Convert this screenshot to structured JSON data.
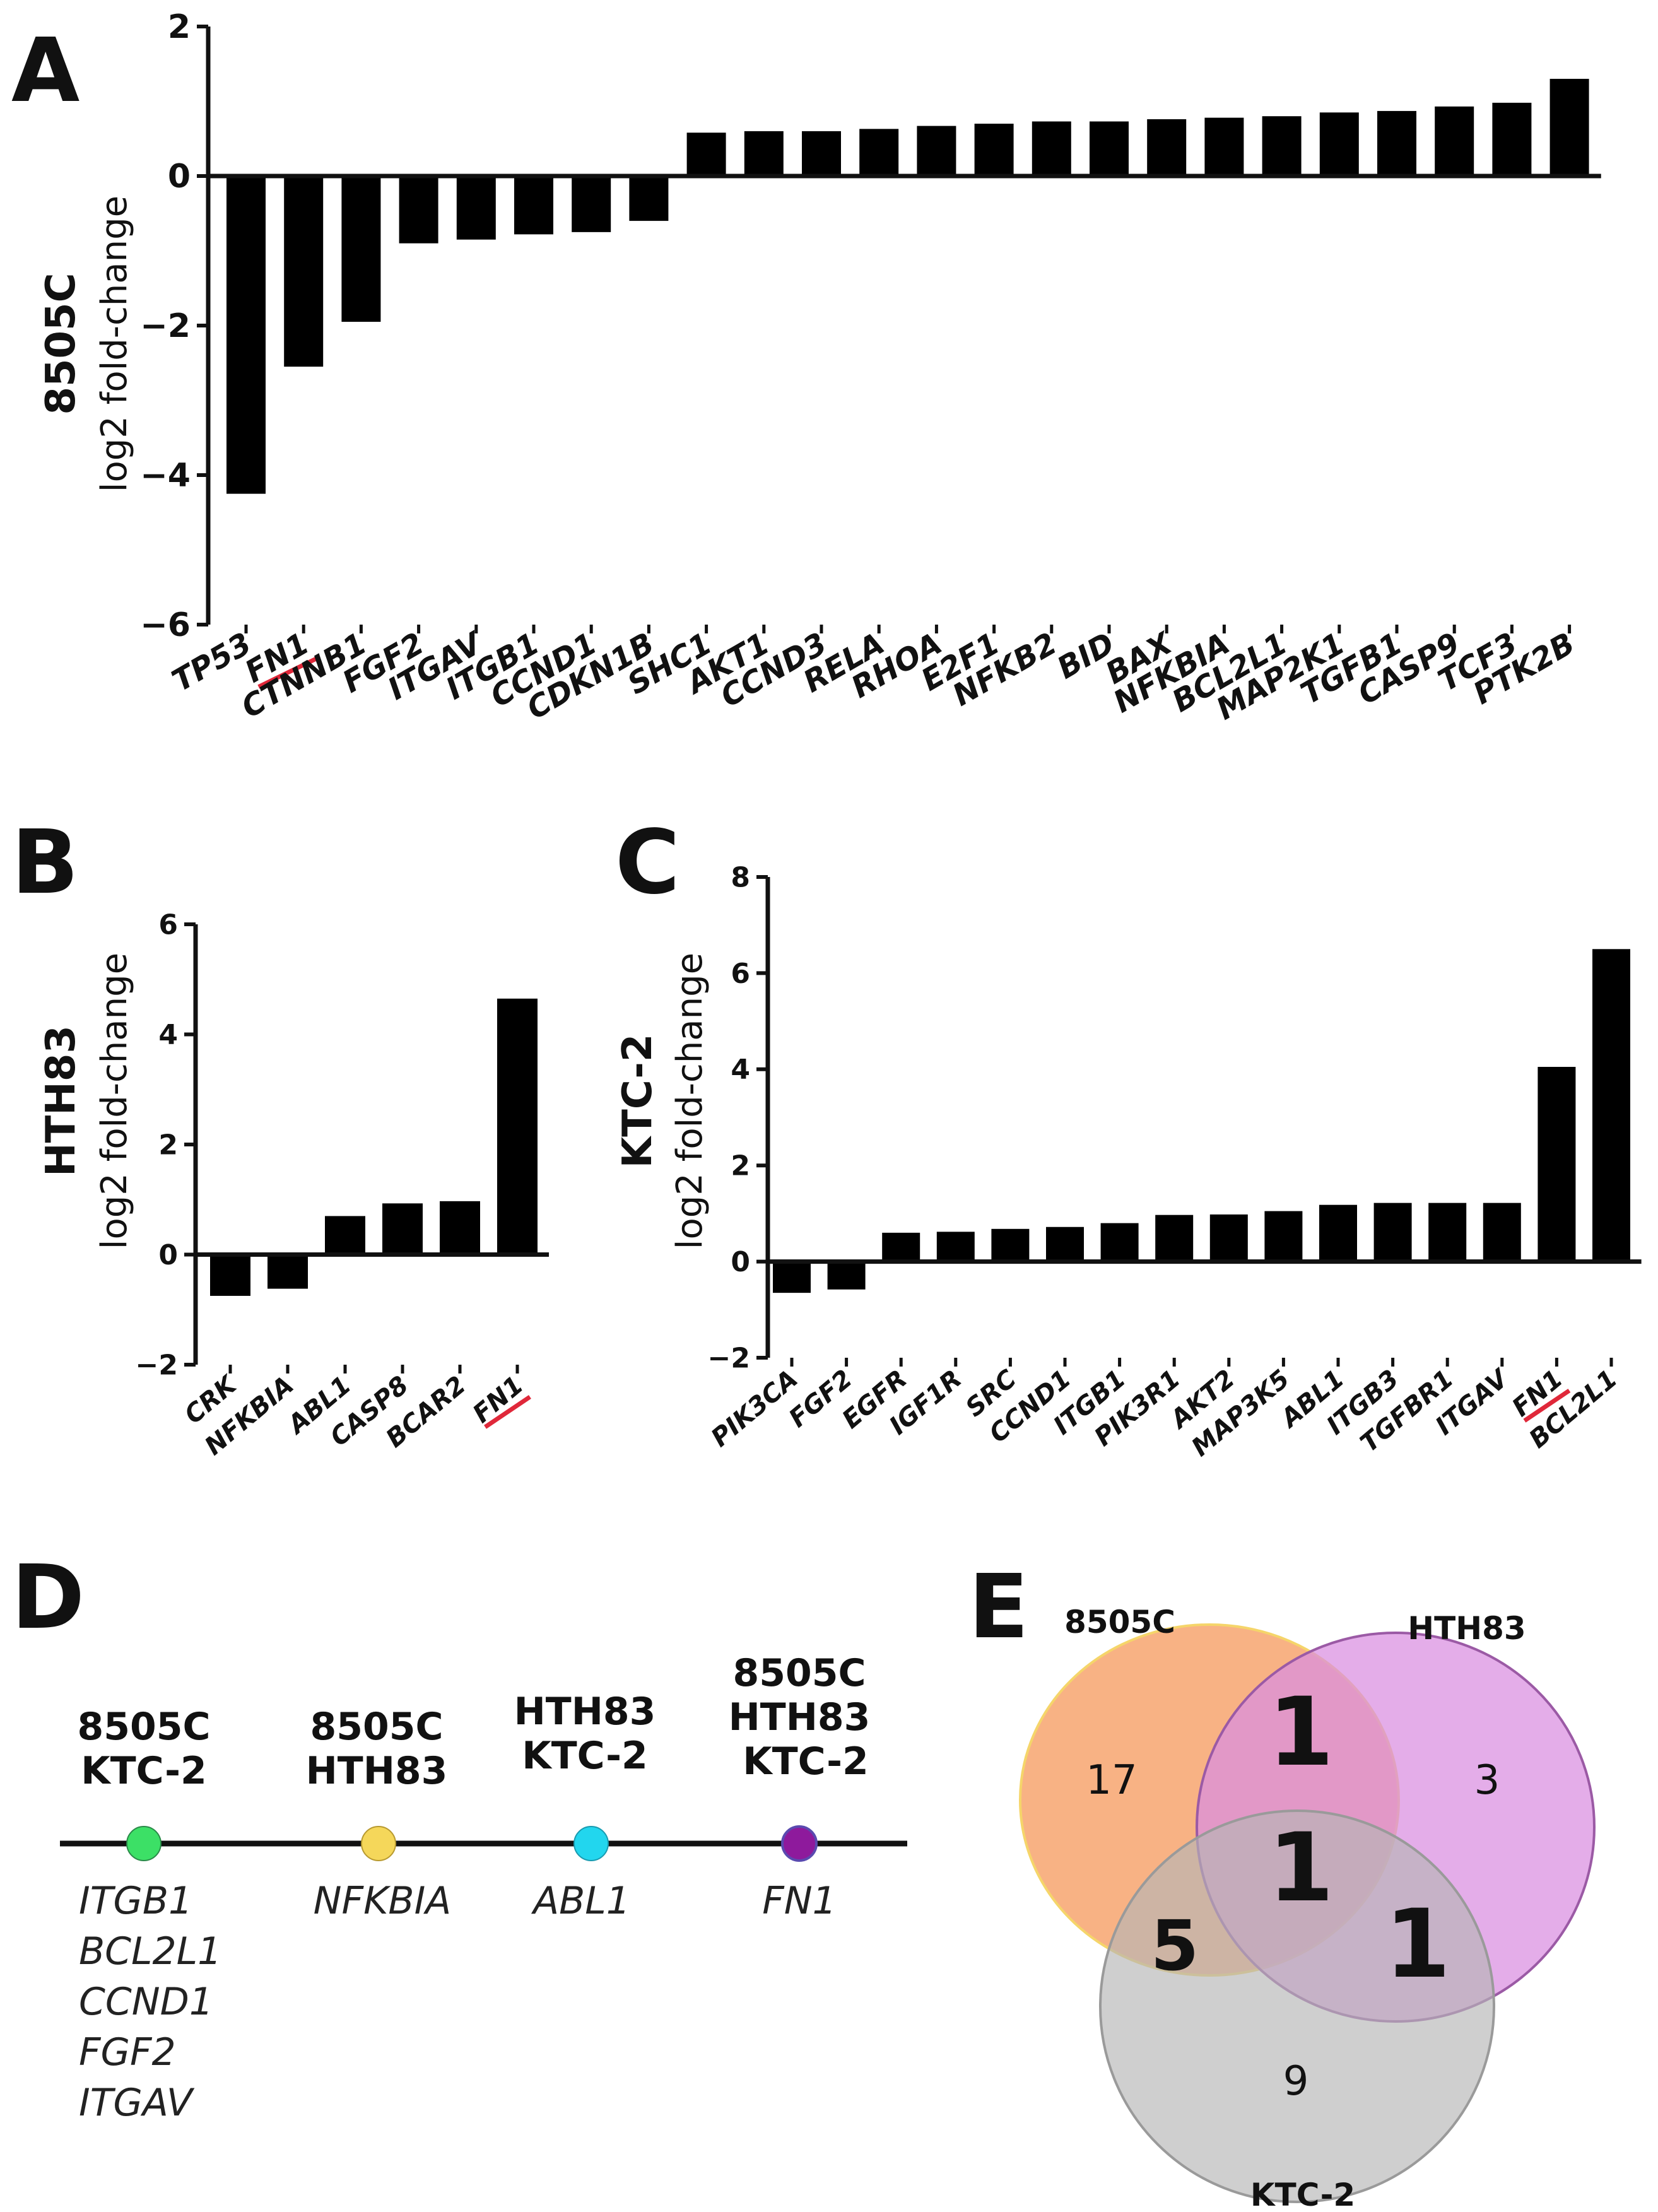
{
  "panels": {
    "A": {
      "letter": "A"
    },
    "B": {
      "letter": "B"
    },
    "C": {
      "letter": "C"
    },
    "D": {
      "letter": "D"
    },
    "E": {
      "letter": "E"
    }
  },
  "chart_data": [
    {
      "id": "A",
      "type": "bar",
      "title": "",
      "ylabel_cell": "8505C",
      "ylabel": "log2 fold-change",
      "ylim": [
        -6,
        2
      ],
      "yticks": [
        2,
        0,
        -2,
        -4,
        -6
      ],
      "categories": [
        "TP53",
        "FN1",
        "CTNNB1",
        "FGF2",
        "ITGAV",
        "ITGB1",
        "CCND1",
        "CDKN1B",
        "SHC1",
        "AKT1",
        "CCND3",
        "RELA",
        "RHOA",
        "E2F1",
        "NFKB2",
        "BID",
        "BAX",
        "NFKBIA",
        "BCL2L1",
        "MAP2K1",
        "TGFB1",
        "CASP9",
        "TCF3",
        "PTK2B"
      ],
      "values": [
        -4.25,
        -2.55,
        -1.95,
        -0.9,
        -0.85,
        -0.78,
        -0.75,
        -0.6,
        0.58,
        0.6,
        0.6,
        0.63,
        0.67,
        0.7,
        0.73,
        0.73,
        0.76,
        0.78,
        0.8,
        0.85,
        0.87,
        0.93,
        0.98,
        1.3
      ],
      "highlight": "FN1",
      "highlight_color": "#e0283a"
    },
    {
      "id": "B",
      "type": "bar",
      "title": "",
      "ylabel_cell": "HTH83",
      "ylabel": "log2 fold-change",
      "ylim": [
        -2,
        6
      ],
      "yticks": [
        6,
        4,
        2,
        0,
        -2
      ],
      "categories": [
        "CRK",
        "NFKBIA",
        "ABL1",
        "CASP8",
        "BCAR2",
        "FN1"
      ],
      "values": [
        -0.75,
        -0.62,
        0.7,
        0.93,
        0.97,
        4.65
      ],
      "highlight": "FN1",
      "highlight_color": "#e0283a"
    },
    {
      "id": "C",
      "type": "bar",
      "title": "",
      "ylabel_cell": "KTC-2",
      "ylabel": "log2 fold-change",
      "ylim": [
        -2,
        8
      ],
      "yticks": [
        8,
        6,
        4,
        2,
        0,
        -2
      ],
      "categories": [
        "PIK3CA",
        "FGF2",
        "EGFR",
        "IGF1R",
        "SRC",
        "CCND1",
        "ITGB1",
        "PIK3R1",
        "AKT2",
        "MAP3K5",
        "ABL1",
        "ITGB3",
        "TGFBR1",
        "ITGAV",
        "FN1",
        "BCL2L1"
      ],
      "values": [
        -0.65,
        -0.58,
        0.6,
        0.62,
        0.68,
        0.72,
        0.8,
        0.97,
        0.98,
        1.05,
        1.18,
        1.22,
        1.22,
        1.22,
        4.05,
        6.5
      ],
      "highlight": "FN1",
      "highlight_color": "#e0283a"
    }
  ],
  "shared_genes": {
    "groups": [
      {
        "lines": [
          "8505C",
          "KTC-2"
        ],
        "genes": [
          "ITGB1",
          "BCL2L1",
          "CCND1",
          "FGF2",
          "ITGAV"
        ],
        "color": "#3ce066"
      },
      {
        "lines": [
          "8505C",
          "HTH83"
        ],
        "genes": [
          "NFKBIA"
        ],
        "color": "#f5d75a"
      },
      {
        "lines": [
          "HTH83",
          "KTC-2"
        ],
        "genes": [
          "ABL1"
        ],
        "color": "#22d6ee"
      },
      {
        "lines": [
          "8505C",
          "HTH83",
          "KTC-2"
        ],
        "genes": [
          "FN1"
        ],
        "color": "#8e1a9c"
      }
    ]
  },
  "venn": {
    "labels": {
      "a": "8505C",
      "b": "HTH83",
      "c": "KTC-2"
    },
    "counts": {
      "a_only": "17",
      "b_only": "3",
      "c_only": "9",
      "ab": "1",
      "ac": "5",
      "bc": "1",
      "abc": "1"
    },
    "colors": {
      "a_fill": "#f7a56e",
      "a_stroke": "#f5d56a",
      "b_fill": "#d98ee0",
      "b_stroke": "#9b5aa5",
      "c_fill": "#b5b5b5",
      "c_stroke": "#9a9a9a",
      "ab_text": "#f5d77a",
      "ac_text": "#3ce066",
      "bc_text": "#22d6ee",
      "abc_text": "#8e1a9c"
    }
  }
}
